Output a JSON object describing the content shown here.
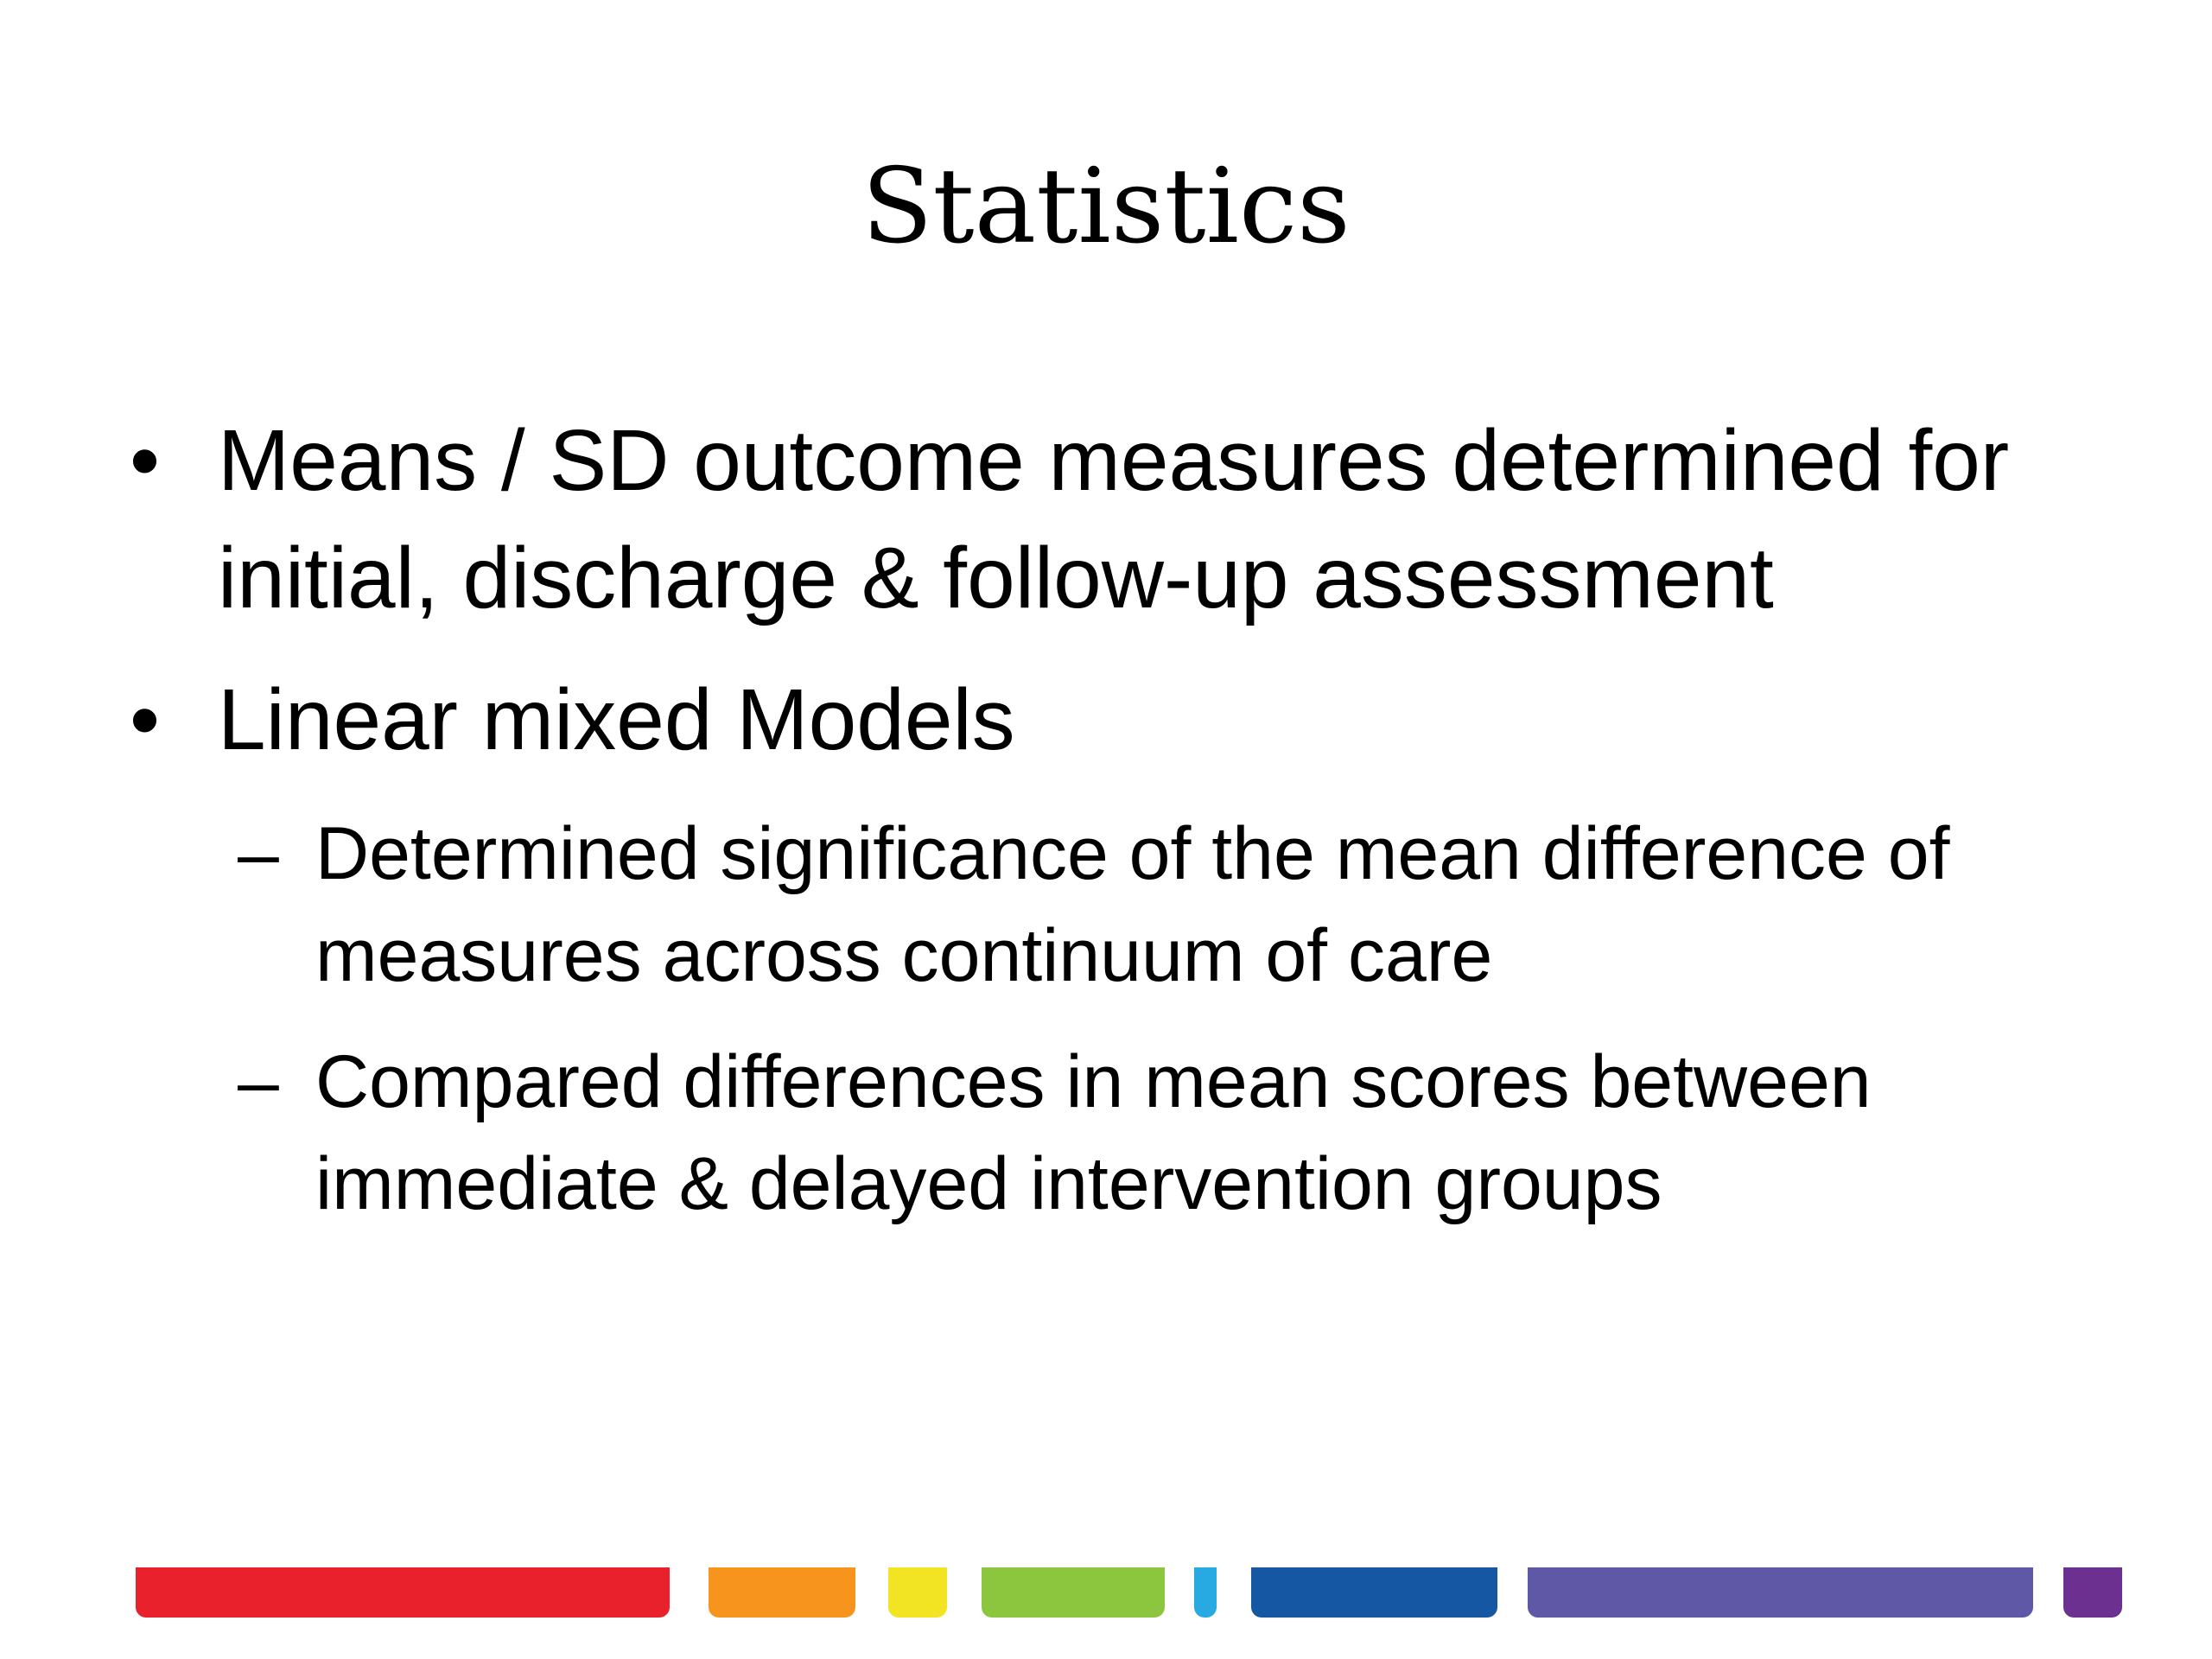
{
  "slide": {
    "title": "Statistics",
    "bullets": [
      {
        "marker": "•",
        "text": "Means / SD outcome measures determined for initial, discharge & follow-up assessment"
      },
      {
        "marker": "•",
        "text": "Linear mixed Models",
        "subbullets": [
          {
            "marker": "–",
            "text": "Determined significance of the mean difference of measures across continuum of care"
          },
          {
            "marker": "–",
            "text": "Compared differences in mean scores between immediate & delayed intervention groups"
          }
        ]
      }
    ]
  },
  "footer_bar_colors": [
    "#e8212d",
    "#f7941d",
    "#f2e422",
    "#8cc63f",
    "#27aae1",
    "#1557a3",
    "#5e58a6",
    "#6b3090"
  ]
}
